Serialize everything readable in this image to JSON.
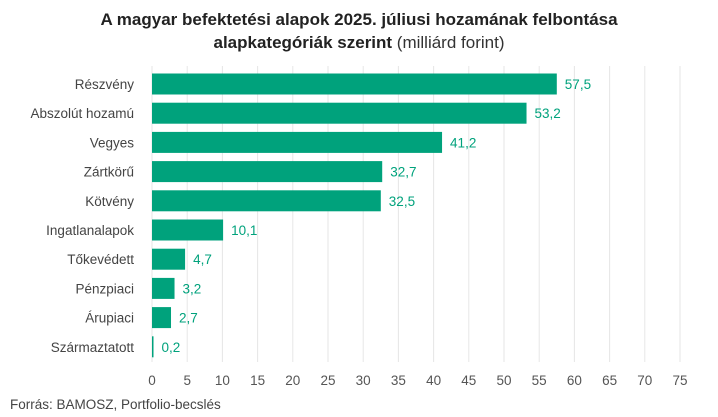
{
  "title": {
    "line1": "A magyar befektetési alapok 2025. júliusi hozamának felbontása",
    "line2_bold": "alapkategóriák szerint",
    "line2_light": " (milliárd forint)"
  },
  "source": "Forrás: BAMOSZ, Portfolio-becslés",
  "colors": {
    "bar": "#00a27c",
    "value_label": "#00a27c",
    "grid": "#e6e6e6"
  },
  "chart_data": {
    "type": "bar",
    "orientation": "horizontal",
    "categories": [
      "Részvény",
      "Abszolút hozamú",
      "Vegyes",
      "Zártkörű",
      "Kötvény",
      "Ingatlanalapok",
      "Tőkevédett",
      "Pénzpiaci",
      "Árupiaci",
      "Származtatott"
    ],
    "values": [
      57.5,
      53.2,
      41.2,
      32.7,
      32.5,
      10.1,
      4.7,
      3.2,
      2.7,
      0.2
    ],
    "value_labels": [
      "57,5",
      "53,2",
      "41,2",
      "32,7",
      "32,5",
      "10,1",
      "4,7",
      "3,2",
      "2,7",
      "0,2"
    ],
    "x_ticks": [
      0,
      5,
      10,
      15,
      20,
      25,
      30,
      35,
      40,
      45,
      50,
      55,
      60,
      65,
      70,
      75
    ],
    "xlim": [
      0,
      75
    ],
    "grid": true
  }
}
